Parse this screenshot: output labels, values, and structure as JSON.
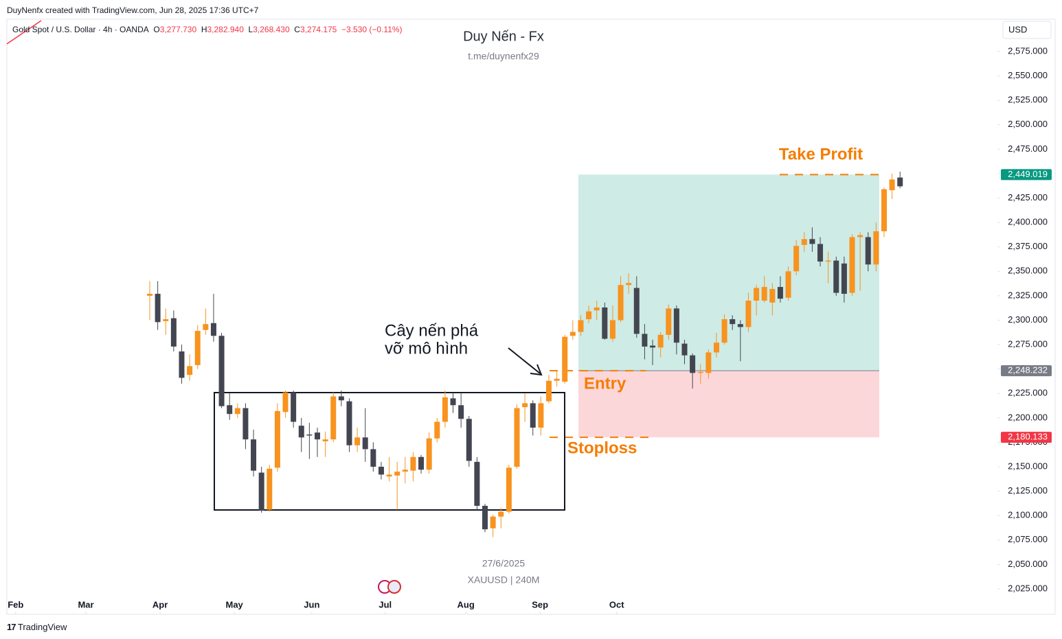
{
  "header": {
    "credit": "DuyNenfx created with TradingView.com, Jun 28, 2025 17:36 UTC+7",
    "watermark_title": "Duy Nến - Fx",
    "watermark_link": "t.me/duynenfx29",
    "watermark_date": "27/6/2025",
    "watermark_symbol": "XAUUSD | 240M",
    "currency": "USD",
    "footer": "TradingView"
  },
  "legend": {
    "symbol": "Gold Spot / U.S. Dollar · 4h · OANDA",
    "o_label": "O",
    "open": "3,277.730",
    "h_label": "H",
    "high": "3,282.940",
    "l_label": "L",
    "low": "3,268.430",
    "c_label": "C",
    "close": "3,274.175",
    "change": "−3.530 (−0.11%)"
  },
  "chart_data": {
    "type": "candlestick",
    "up_color": "#f7931e",
    "down_color": "#434651",
    "open": [
      2325,
      2327,
      2299,
      2302,
      2268,
      2244,
      2254,
      2290,
      2297,
      2284,
      2213,
      2204,
      2210,
      2178,
      2144,
      2106,
      2149,
      2206,
      2226,
      2192,
      2183,
      2185,
      2176,
      2178,
      2222,
      2217,
      2172,
      2180,
      2168,
      2150,
      2140,
      2141,
      2145,
      2146,
      2160,
      2147,
      2179,
      2196,
      2220,
      2213,
      2199,
      2155,
      2110,
      2087,
      2099,
      2104,
      2150,
      2211,
      2215,
      2190,
      2217,
      2238,
      2237,
      2284,
      2288,
      2301,
      2310,
      2313,
      2281,
      2300,
      2336,
      2333,
      2286,
      2274,
      2272,
      2285,
      2312,
      2276,
      2264,
      2246,
      2246,
      2267,
      2277,
      2301,
      2296,
      2293,
      2320,
      2320,
      2318,
      2334,
      2323,
      2350,
      2377,
      2383,
      2378,
      2360,
      2361,
      2358,
      2328,
      2385,
      2385,
      2357,
      2391,
      2433,
      2446
    ],
    "high": [
      2340,
      2340,
      2312,
      2310,
      2275,
      2265,
      2295,
      2312,
      2327,
      2287,
      2225,
      2215,
      2215,
      2188,
      2150,
      2152,
      2215,
      2228,
      2228,
      2200,
      2195,
      2190,
      2186,
      2226,
      2228,
      2220,
      2190,
      2210,
      2175,
      2155,
      2160,
      2155,
      2160,
      2165,
      2162,
      2185,
      2200,
      2228,
      2225,
      2225,
      2202,
      2160,
      2112,
      2101,
      2108,
      2152,
      2214,
      2225,
      2218,
      2222,
      2244,
      2248,
      2285,
      2300,
      2305,
      2315,
      2320,
      2318,
      2315,
      2345,
      2348,
      2345,
      2296,
      2280,
      2288,
      2316,
      2315,
      2280,
      2266,
      2255,
      2270,
      2287,
      2306,
      2305,
      2300,
      2328,
      2336,
      2345,
      2338,
      2345,
      2355,
      2382,
      2390,
      2395,
      2385,
      2370,
      2365,
      2365,
      2388,
      2390,
      2390,
      2400,
      2436,
      2450,
      2452
    ],
    "low": [
      2300,
      2290,
      2285,
      2268,
      2235,
      2238,
      2250,
      2285,
      2278,
      2210,
      2198,
      2200,
      2168,
      2140,
      2103,
      2104,
      2145,
      2200,
      2190,
      2165,
      2158,
      2160,
      2160,
      2175,
      2212,
      2165,
      2165,
      2155,
      2145,
      2137,
      2135,
      2106,
      2133,
      2135,
      2143,
      2143,
      2175,
      2190,
      2205,
      2190,
      2150,
      2106,
      2083,
      2078,
      2087,
      2102,
      2148,
      2196,
      2182,
      2182,
      2215,
      2232,
      2235,
      2280,
      2284,
      2297,
      2300,
      2280,
      2278,
      2298,
      2327,
      2282,
      2260,
      2254,
      2262,
      2280,
      2265,
      2255,
      2230,
      2235,
      2240,
      2262,
      2275,
      2290,
      2258,
      2288,
      2305,
      2318,
      2305,
      2318,
      2320,
      2346,
      2370,
      2370,
      2355,
      2338,
      2325,
      2318,
      2325,
      2330,
      2350,
      2350,
      2385,
      2424,
      2435
    ],
    "close": [
      2327,
      2298,
      2301,
      2273,
      2241,
      2253,
      2289,
      2296,
      2284,
      2212,
      2204,
      2210,
      2178,
      2146,
      2105,
      2148,
      2207,
      2226,
      2196,
      2180,
      2182,
      2178,
      2178,
      2222,
      2218,
      2172,
      2180,
      2168,
      2150,
      2142,
      2142,
      2145,
      2147,
      2160,
      2147,
      2179,
      2196,
      2221,
      2213,
      2199,
      2156,
      2110,
      2086,
      2099,
      2104,
      2149,
      2210,
      2215,
      2190,
      2215,
      2238,
      2240,
      2283,
      2288,
      2300,
      2309,
      2313,
      2281,
      2300,
      2336,
      2338,
      2286,
      2273,
      2272,
      2285,
      2312,
      2277,
      2264,
      2246,
      2247,
      2267,
      2277,
      2301,
      2296,
      2293,
      2320,
      2333,
      2334,
      2332,
      2322,
      2350,
      2376,
      2383,
      2378,
      2360,
      2361,
      2328,
      2327,
      2385,
      2387,
      2357,
      2391,
      2434,
      2444,
      2437
    ],
    "xlim": [
      -17.9,
      106.2
    ],
    "xticks": [
      {
        "value": -16.8,
        "label": "Feb"
      },
      {
        "value": -8.0,
        "label": "Mar"
      },
      {
        "value": 1.3,
        "label": "Apr"
      },
      {
        "value": 10.6,
        "label": "May"
      },
      {
        "value": 20.3,
        "label": "Jun"
      },
      {
        "value": 29.5,
        "label": "Jul"
      },
      {
        "value": 39.6,
        "label": "Aug"
      },
      {
        "value": 48.9,
        "label": "Sep"
      },
      {
        "value": 58.5,
        "label": "Oct"
      }
    ],
    "ylim": [
      1999,
      2608
    ],
    "yticks": [
      {
        "value": 2575,
        "label": "2,575.000"
      },
      {
        "value": 2550,
        "label": "2,550.000"
      },
      {
        "value": 2525,
        "label": "2,525.000"
      },
      {
        "value": 2500,
        "label": "2,500.000"
      },
      {
        "value": 2475,
        "label": "2,475.000"
      },
      {
        "value": 2450,
        "label": "2,450.000"
      },
      {
        "value": 2425,
        "label": "2,425.000"
      },
      {
        "value": 2400,
        "label": "2,400.000"
      },
      {
        "value": 2375,
        "label": "2,375.000"
      },
      {
        "value": 2350,
        "label": "2,350.000"
      },
      {
        "value": 2325,
        "label": "2,325.000"
      },
      {
        "value": 2300,
        "label": "2,300.000"
      },
      {
        "value": 2275,
        "label": "2,275.000"
      },
      {
        "value": 2250,
        "label": "2,250.000"
      },
      {
        "value": 2225,
        "label": "2,225.000"
      },
      {
        "value": 2200,
        "label": "2,200.000"
      },
      {
        "value": 2175,
        "label": "2,175.000"
      },
      {
        "value": 2150,
        "label": "2,150.000"
      },
      {
        "value": 2125,
        "label": "2,125.000"
      },
      {
        "value": 2100,
        "label": "2,100.000"
      },
      {
        "value": 2075,
        "label": "2,075.000"
      },
      {
        "value": 2050,
        "label": "2,050.000"
      },
      {
        "value": 2025,
        "label": "2,025.000"
      }
    ],
    "position": {
      "take_profit": {
        "value": 2449.019,
        "label": "2,449.019",
        "color": "#089981"
      },
      "entry": {
        "value": 2248.232,
        "label": "2,248.232",
        "color": "#787b86"
      },
      "stop_loss": {
        "value": 2180.133,
        "label": "2,180.133",
        "color": "#f23645"
      }
    },
    "annotations": {
      "take_profit": "Take Profit",
      "entry": "Entry",
      "stop_loss": "Stoploss",
      "callout_line1": "Cây nến phá",
      "callout_line2": "vỡ mô hình"
    }
  }
}
